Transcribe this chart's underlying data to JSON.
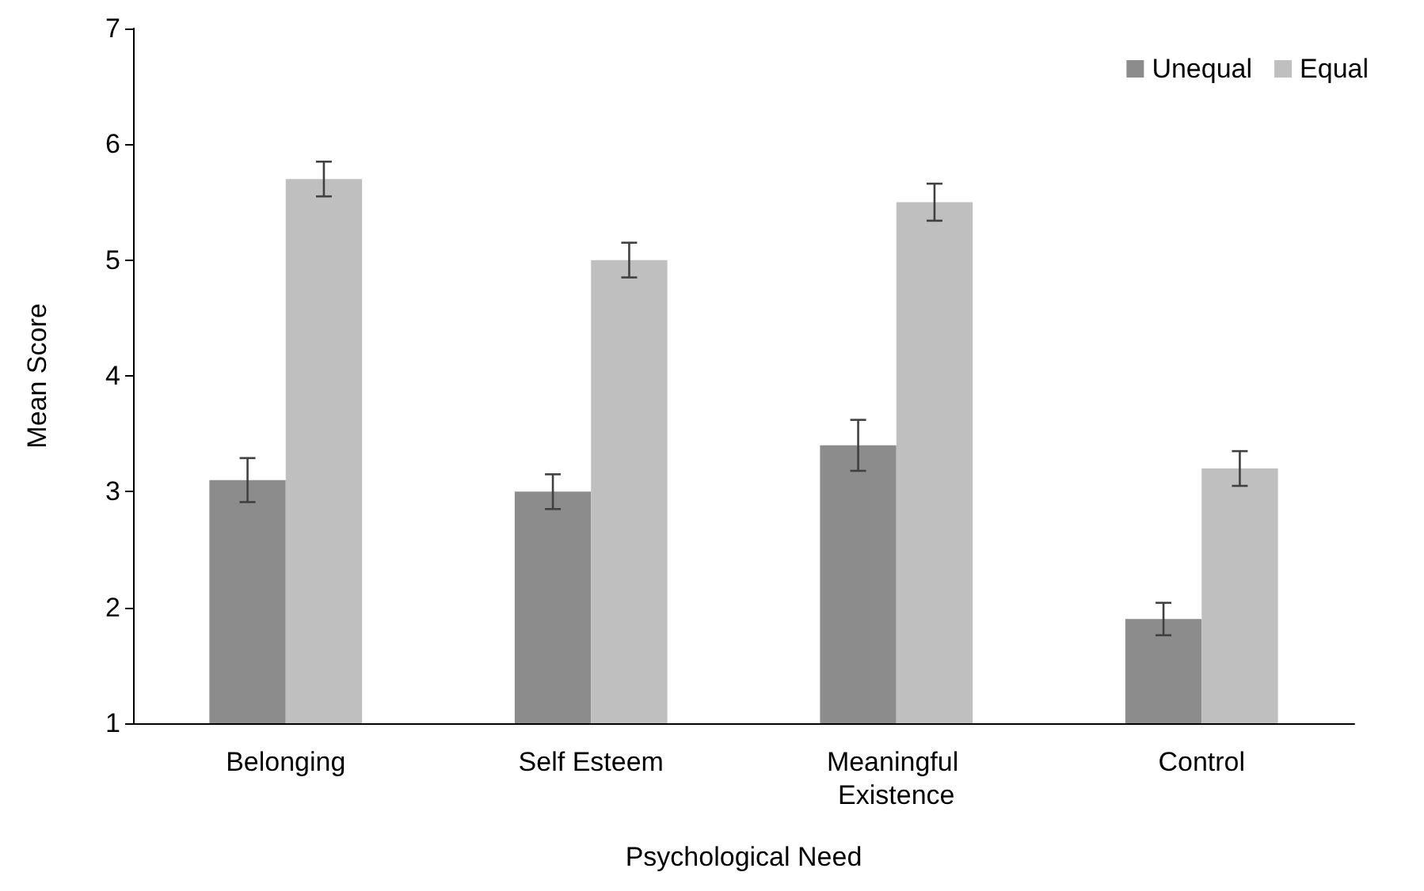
{
  "chart_data": {
    "type": "bar",
    "xlabel": "Psychological Need",
    "ylabel": "Mean Score",
    "categories": [
      "Belonging",
      "Self Esteem",
      "Meaningful Existence",
      "Control"
    ],
    "series": [
      {
        "name": "Unequal",
        "color": "#8c8c8c",
        "values": [
          3.1,
          3.0,
          3.4,
          1.9
        ],
        "errors": [
          0.19,
          0.15,
          0.22,
          0.14
        ]
      },
      {
        "name": "Equal",
        "color": "#bfbfbf",
        "values": [
          5.7,
          5.0,
          5.5,
          3.2
        ],
        "errors": [
          0.15,
          0.15,
          0.16,
          0.15
        ]
      }
    ],
    "ylim": [
      1,
      7
    ],
    "yticks": [
      1,
      2,
      3,
      4,
      5,
      6,
      7
    ],
    "grid": false,
    "legend": "top right"
  }
}
